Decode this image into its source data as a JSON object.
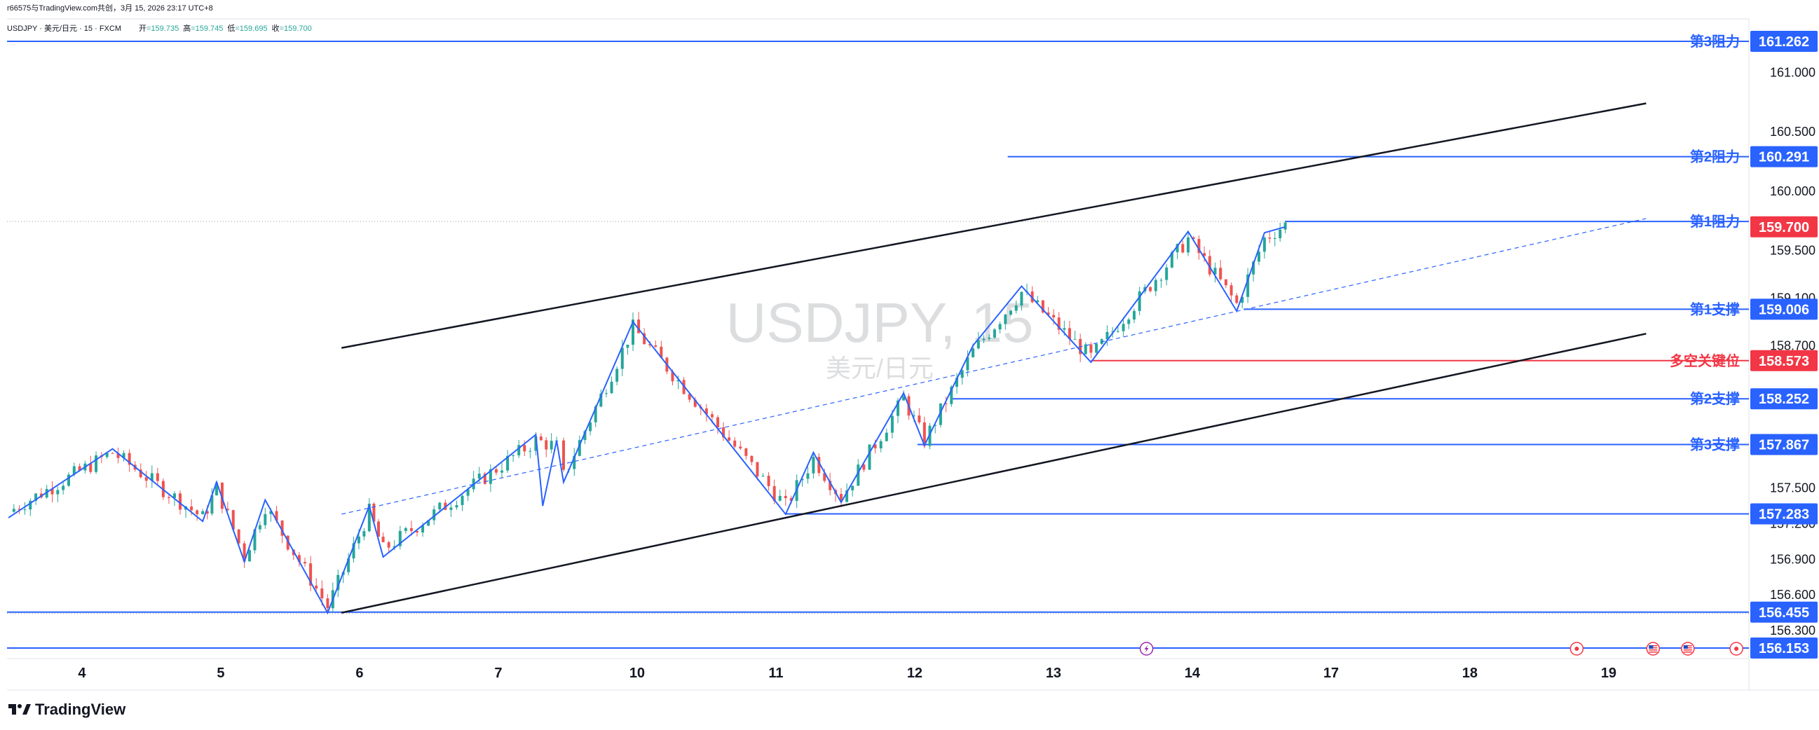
{
  "header": {
    "attribution": "r66575与TradingView.com共创，3月 15, 2026 23:17 UTC+8",
    "symbol_line": "USDJPY · 美元/日元 · 15 · FXCM",
    "ohlc": [
      {
        "label": "开",
        "value": "159.735"
      },
      {
        "label": "高",
        "value": "159.745"
      },
      {
        "label": "低",
        "value": "159.695"
      },
      {
        "label": "收",
        "value": "159.700"
      }
    ]
  },
  "watermark": {
    "symbol": "USDJPY, 15",
    "name": "美元/日元"
  },
  "logo": {
    "text": "TradingView"
  },
  "colors": {
    "up": "#26a69a",
    "down": "#ef5350",
    "blue": "#2962ff",
    "red": "#f23645",
    "black": "#131722"
  },
  "chart_data": {
    "type": "candlestick",
    "symbol": "USDJPY",
    "timeframe": "15",
    "y_axis_ticks": [
      "161.000",
      "160.500",
      "160.000",
      "159.500",
      "159.100",
      "158.700",
      "157.500",
      "157.200",
      "156.900",
      "156.600",
      "156.300"
    ],
    "x_axis_labels": [
      "4",
      "5",
      "6",
      "7",
      "10",
      "11",
      "12",
      "13",
      "14",
      "17",
      "18",
      "19"
    ],
    "ylim": [
      155.9,
      161.5
    ],
    "levels": [
      {
        "name": "第3阻力",
        "value": 161.262,
        "tag": "161.262",
        "color": "#2962ff",
        "from_day": 0
      },
      {
        "name": "第2阻力",
        "value": 160.291,
        "tag": "160.291",
        "color": "#2962ff",
        "from_day": 7.2
      },
      {
        "name": "第1阻力",
        "value": 159.745,
        "tag": "159.700",
        "color": "#2962ff",
        "tag_color": "#f23645",
        "from_day": 9.2
      },
      {
        "name": "第1支撑",
        "value": 159.006,
        "tag": "159.006",
        "color": "#2962ff",
        "from_day": 8.9
      },
      {
        "name": "多空关键位",
        "value": 158.573,
        "tag": "158.573",
        "color": "#f23645",
        "from_day": 7.8
      },
      {
        "name": "第2支撑",
        "value": 158.252,
        "tag": "158.252",
        "color": "#2962ff",
        "from_day": 6.8
      },
      {
        "name": "第3支撑",
        "value": 157.867,
        "tag": "157.867",
        "color": "#2962ff",
        "from_day": 6.55
      },
      {
        "name": "",
        "value": 157.283,
        "tag": "157.283",
        "color": "#2962ff",
        "from_day": 5.6
      },
      {
        "name": "",
        "value": 156.455,
        "tag": "156.455",
        "color": "#2962ff",
        "from_day": 0
      },
      {
        "name": "",
        "value": 156.153,
        "tag": "156.153",
        "color": "#2962ff",
        "from_day": 0
      }
    ],
    "channel": {
      "upper": [
        {
          "day": 2.4,
          "y": 158.68
        },
        {
          "day": 11.8,
          "y": 160.74
        }
      ],
      "lower": [
        {
          "day": 2.4,
          "y": 156.45
        },
        {
          "day": 11.8,
          "y": 158.8
        }
      ],
      "mid": [
        {
          "day": 2.4,
          "y": 157.28
        },
        {
          "day": 11.8,
          "y": 159.77
        }
      ]
    },
    "zigzag": [
      {
        "day": 0.0,
        "y": 157.25
      },
      {
        "day": 0.75,
        "y": 157.83
      },
      {
        "day": 1.4,
        "y": 157.22
      },
      {
        "day": 1.5,
        "y": 157.55
      },
      {
        "day": 1.7,
        "y": 156.88
      },
      {
        "day": 1.85,
        "y": 157.4
      },
      {
        "day": 2.3,
        "y": 156.45
      },
      {
        "day": 2.6,
        "y": 157.35
      },
      {
        "day": 2.7,
        "y": 156.92
      },
      {
        "day": 3.8,
        "y": 157.95
      },
      {
        "day": 3.85,
        "y": 157.35
      },
      {
        "day": 3.95,
        "y": 157.9
      },
      {
        "day": 4.0,
        "y": 157.55
      },
      {
        "day": 4.5,
        "y": 158.9
      },
      {
        "day": 5.6,
        "y": 157.28
      },
      {
        "day": 5.8,
        "y": 157.8
      },
      {
        "day": 6.0,
        "y": 157.38
      },
      {
        "day": 6.45,
        "y": 158.3
      },
      {
        "day": 6.6,
        "y": 157.86
      },
      {
        "day": 6.95,
        "y": 158.7
      },
      {
        "day": 7.3,
        "y": 159.2
      },
      {
        "day": 7.8,
        "y": 158.56
      },
      {
        "day": 8.5,
        "y": 159.66
      },
      {
        "day": 8.85,
        "y": 158.99
      },
      {
        "day": 9.05,
        "y": 159.65
      },
      {
        "day": 9.2,
        "y": 159.7
      }
    ],
    "candle_path": [
      {
        "day": 0.0,
        "y": 157.3
      },
      {
        "day": 0.75,
        "y": 157.8
      },
      {
        "day": 1.4,
        "y": 157.25
      },
      {
        "day": 1.5,
        "y": 157.5
      },
      {
        "day": 1.7,
        "y": 156.92
      },
      {
        "day": 1.85,
        "y": 157.35
      },
      {
        "day": 2.3,
        "y": 156.5
      },
      {
        "day": 2.6,
        "y": 157.3
      },
      {
        "day": 2.7,
        "y": 156.98
      },
      {
        "day": 3.8,
        "y": 157.9
      },
      {
        "day": 3.95,
        "y": 157.85
      },
      {
        "day": 4.0,
        "y": 157.6
      },
      {
        "day": 4.5,
        "y": 158.85
      },
      {
        "day": 5.6,
        "y": 157.35
      },
      {
        "day": 5.8,
        "y": 157.75
      },
      {
        "day": 6.0,
        "y": 157.42
      },
      {
        "day": 6.45,
        "y": 158.25
      },
      {
        "day": 6.6,
        "y": 157.9
      },
      {
        "day": 6.95,
        "y": 158.65
      },
      {
        "day": 7.3,
        "y": 159.15
      },
      {
        "day": 7.8,
        "y": 158.6
      },
      {
        "day": 8.5,
        "y": 159.6
      },
      {
        "day": 8.85,
        "y": 159.05
      },
      {
        "day": 9.05,
        "y": 159.6
      },
      {
        "day": 9.2,
        "y": 159.72
      }
    ],
    "events": [
      {
        "icon": "lightning-icon",
        "day": 8.2
      },
      {
        "icon": "event-dot-icon",
        "day": 11.3
      },
      {
        "icon": "us-flag-icon",
        "day": 11.85
      },
      {
        "icon": "us-flag-icon",
        "day": 12.1
      },
      {
        "icon": "event-dot-icon",
        "day": 12.45
      }
    ]
  }
}
